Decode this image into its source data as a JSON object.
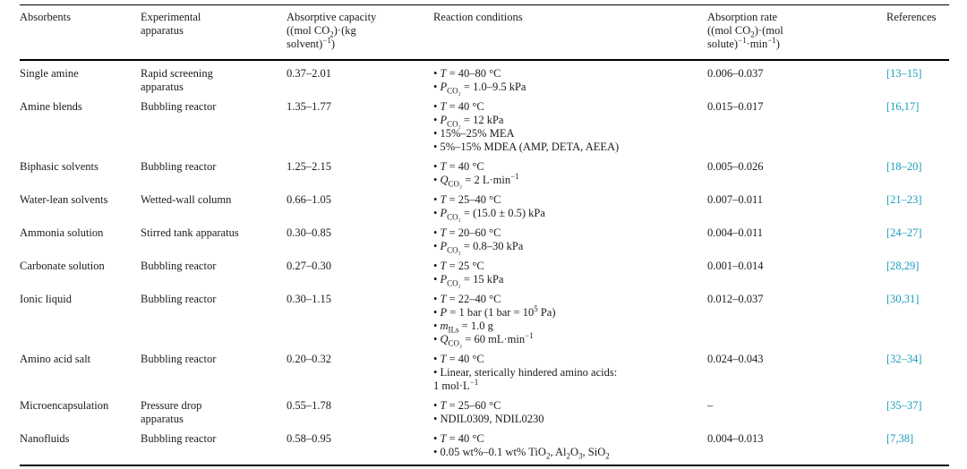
{
  "colors": {
    "reference_link": "#1a9cba",
    "text": "#1b1b1b",
    "rule": "#000000"
  },
  "table": {
    "headers": [
      "Absorbents",
      "Experimental apparatus",
      "Absorptive capacity ((mol CO<sub>2</sub>)·(kg solvent)<sup>−1</sup>)",
      "Reaction conditions",
      "Absorption rate ((mol CO<sub>2</sub>)·(mol solute)<sup>−1</sup>·min<sup>−1</sup>)",
      "References"
    ],
    "rows": [
      {
        "absorbent": "Single amine",
        "apparatus": "Rapid screening apparatus",
        "capacity": "0.37–2.01",
        "conditions": [
          "<i>T</i> = 40–80 °C",
          "<i>P</i><sub>CO₂</sub> = 1.0–9.5 kPa"
        ],
        "rate": "0.006–0.037",
        "reference": "[13–15]"
      },
      {
        "absorbent": "Amine blends",
        "apparatus": "Bubbling reactor",
        "capacity": "1.35–1.77",
        "conditions": [
          "<i>T</i> = 40 °C",
          "<i>P</i><sub>CO₂</sub> = 12 kPa",
          "15%–25% MEA",
          "5%–15% MDEA (AMP, DETA, AEEA)"
        ],
        "rate": "0.015–0.017",
        "reference": "[16,17]"
      },
      {
        "absorbent": "Biphasic solvents",
        "apparatus": "Bubbling reactor",
        "capacity": "1.25–2.15",
        "conditions": [
          "<i>T</i> = 40 °C",
          "<i>Q</i><sub>CO₂</sub> = 2 L·min<sup>−1</sup>"
        ],
        "rate": "0.005–0.026",
        "reference": "[18–20]"
      },
      {
        "absorbent": "Water-lean solvents",
        "apparatus": "Wetted-wall column",
        "capacity": "0.66–1.05",
        "conditions": [
          "<i>T</i> = 25–40 °C",
          "<i>P</i><sub>CO₂</sub> = (15.0 ± 0.5) kPa"
        ],
        "rate": "0.007–0.011",
        "reference": "[21–23]"
      },
      {
        "absorbent": "Ammonia solution",
        "apparatus": "Stirred tank apparatus",
        "capacity": "0.30–0.85",
        "conditions": [
          "<i>T</i> = 20–60 °C",
          "<i>P</i><sub>CO₂</sub> = 0.8–30 kPa"
        ],
        "rate": "0.004–0.011",
        "reference": "[24–27]"
      },
      {
        "absorbent": "Carbonate solution",
        "apparatus": "Bubbling reactor",
        "capacity": "0.27–0.30",
        "conditions": [
          "<i>T</i> = 25 °C",
          "<i>P</i><sub>CO₂</sub> = 15 kPa"
        ],
        "rate": "0.001–0.014",
        "reference": "[28,29]"
      },
      {
        "absorbent": "Ionic liquid",
        "apparatus": "Bubbling reactor",
        "capacity": "0.30–1.15",
        "conditions": [
          "<i>T</i> = 22–40 °C",
          "<i>P</i> = 1 bar (1 bar = 10<sup>5</sup> Pa)",
          "<i>m</i><sub>ILs</sub> = 1.0 g",
          "<i>Q</i><sub>CO₂</sub> = 60 mL·min<sup>−1</sup>"
        ],
        "rate": "0.012–0.037",
        "reference": "[30,31]"
      },
      {
        "absorbent": "Amino acid salt",
        "apparatus": "Bubbling reactor",
        "capacity": "0.20–0.32",
        "conditions": [
          "<i>T</i> = 40 °C",
          "Linear, sterically hindered amino acids:",
          {
            "text": "1 mol·L<sup>−1</sup>",
            "bullet": false
          }
        ],
        "rate": "0.024–0.043",
        "reference": "[32–34]"
      },
      {
        "absorbent": "Microencapsulation",
        "apparatus": "Pressure drop apparatus",
        "capacity": "0.55–1.78",
        "conditions": [
          "<i>T</i> = 25–60 °C",
          "NDIL0309, NDIL0230"
        ],
        "rate": "–",
        "reference": "[35–37]"
      },
      {
        "absorbent": "Nanofluids",
        "apparatus": "Bubbling reactor",
        "capacity": "0.58–0.95",
        "conditions": [
          "<i>T</i> = 40 °C",
          "0.05 wt%–0.1 wt% TiO<sub>2</sub>, Al<sub>2</sub>O<sub>3</sub>, SiO<sub>2</sub>"
        ],
        "rate": "0.004–0.013",
        "reference": "[7,38]"
      }
    ]
  }
}
